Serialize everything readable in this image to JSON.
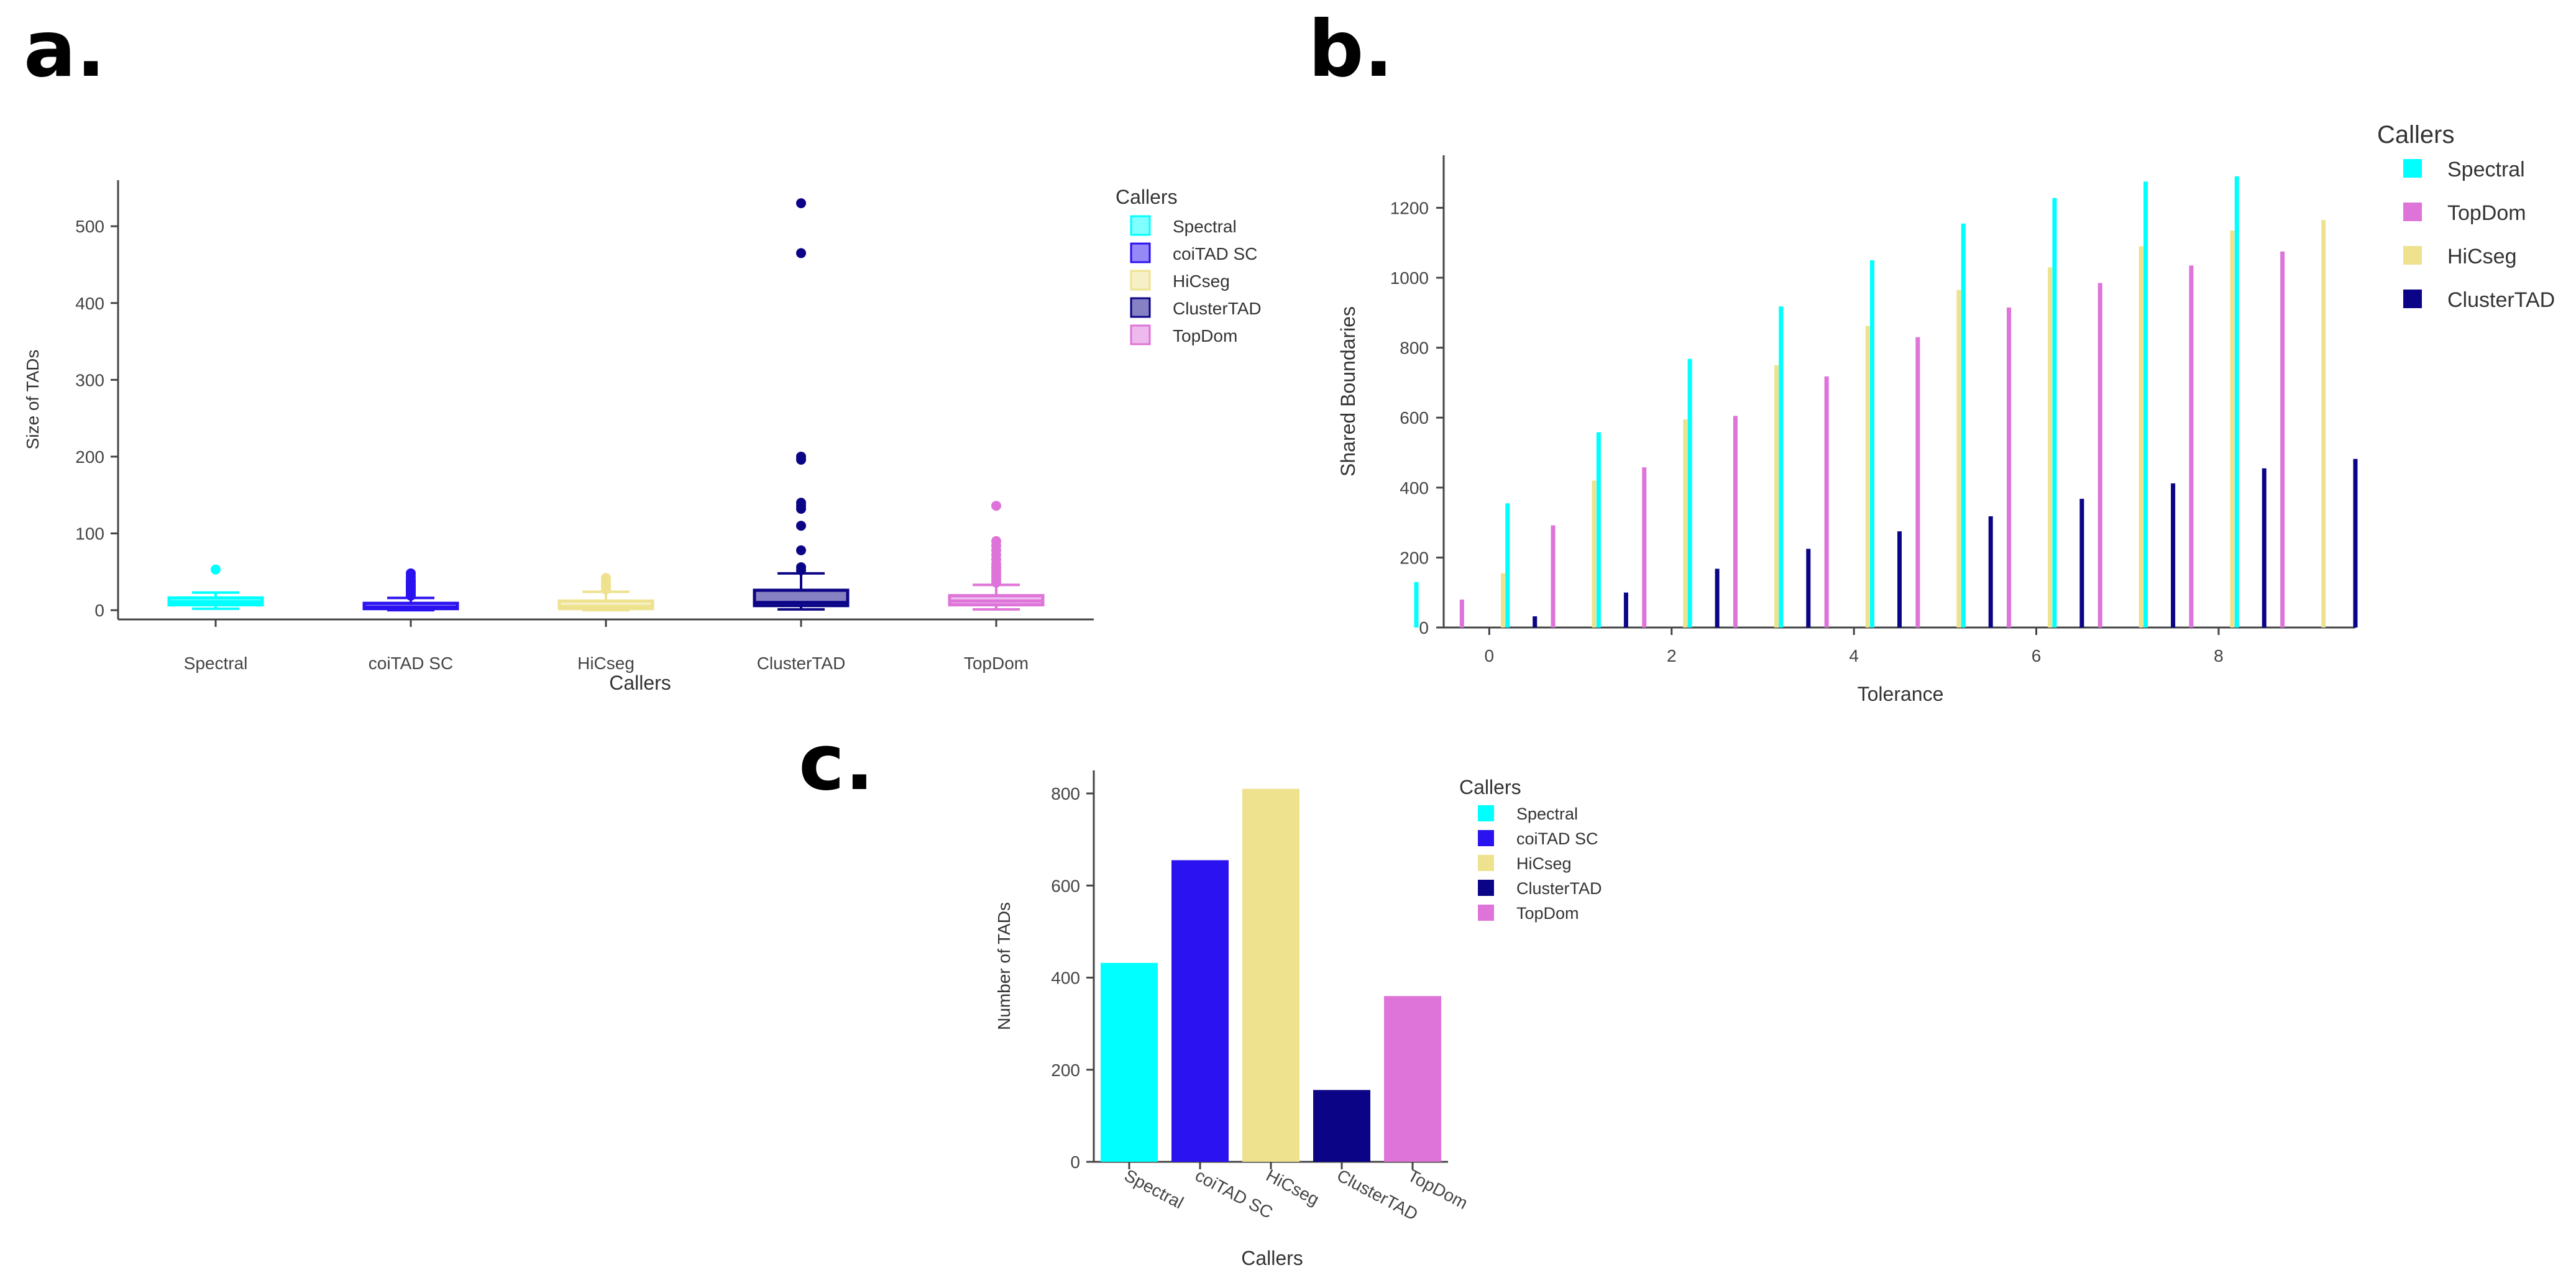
{
  "panels": {
    "a": {
      "label": "a."
    },
    "b": {
      "label": "b."
    },
    "c": {
      "label": "c."
    }
  },
  "colors": {
    "Spectral": "#00ffff",
    "coiTAD SC": "#2b12f0",
    "HiCseg": "#eee28f",
    "ClusterTAD": "#0c0486",
    "TopDom": "#de74d9"
  },
  "chart_data": [
    {
      "id": "a",
      "type": "box",
      "title": "",
      "xlabel": "Callers",
      "ylabel": "Size of TADs",
      "ylim": [
        -12,
        560
      ],
      "yticks": [
        0,
        100,
        200,
        300,
        400,
        500
      ],
      "legend_title": "Callers",
      "legend": [
        "Spectral",
        "coiTAD SC",
        "HiCseg",
        "ClusterTAD",
        "TopDom"
      ],
      "categories": [
        "Spectral",
        "coiTAD SC",
        "HiCseg",
        "ClusterTAD",
        "TopDom"
      ],
      "boxes": [
        {
          "name": "Spectral",
          "q1": 7,
          "median": 11,
          "q3": 16,
          "whisker_low": 2,
          "whisker_high": 23,
          "outliers": [
            53
          ]
        },
        {
          "name": "coiTAD SC",
          "q1": 2,
          "median": 4,
          "q3": 9,
          "whisker_low": 0,
          "whisker_high": 16,
          "outliers": [
            19,
            21,
            23,
            25,
            27,
            29,
            31,
            33,
            35,
            37,
            40,
            44,
            48
          ]
        },
        {
          "name": "HiCseg",
          "q1": 2,
          "median": 5,
          "q3": 12,
          "whisker_low": 0,
          "whisker_high": 24,
          "outliers": [
            27,
            30,
            33,
            36,
            39,
            42
          ]
        },
        {
          "name": "ClusterTAD",
          "q1": 6,
          "median": 10,
          "q3": 26,
          "whisker_low": 1,
          "whisker_high": 48,
          "outliers": [
            52,
            56,
            78,
            110,
            132,
            136,
            140,
            196,
            200,
            465,
            530
          ]
        },
        {
          "name": "TopDom",
          "q1": 7,
          "median": 12,
          "q3": 19,
          "whisker_low": 1,
          "whisker_high": 33,
          "outliers": [
            36,
            40,
            44,
            48,
            52,
            56,
            60,
            66,
            72,
            78,
            84,
            90,
            136
          ]
        }
      ]
    },
    {
      "id": "b",
      "type": "bar",
      "title": "",
      "xlabel": "Tolerance",
      "ylabel": "Shared Boundaries",
      "xlim": [
        -0.5,
        9.5
      ],
      "ylim": [
        0,
        1350
      ],
      "xticks": [
        0,
        2,
        4,
        6,
        8
      ],
      "yticks": [
        0,
        200,
        400,
        600,
        800,
        1000,
        1200
      ],
      "legend_title": "Callers",
      "legend": [
        "Spectral",
        "TopDom",
        "HiCseg",
        "ClusterTAD"
      ],
      "x": [
        0,
        1,
        2,
        3,
        4,
        5,
        6,
        7,
        8,
        9
      ],
      "series": [
        {
          "name": "Spectral",
          "values": [
            130,
            355,
            558,
            768,
            918,
            1050,
            1155,
            1228,
            1275,
            1290
          ]
        },
        {
          "name": "TopDom",
          "values": [
            80,
            292,
            458,
            605,
            718,
            830,
            915,
            985,
            1035,
            1075
          ]
        },
        {
          "name": "HiCseg",
          "values": [
            155,
            420,
            595,
            750,
            862,
            965,
            1030,
            1090,
            1135,
            1165
          ]
        },
        {
          "name": "ClusterTAD",
          "values": [
            32,
            100,
            168,
            225,
            275,
            318,
            368,
            412,
            455,
            482
          ]
        }
      ]
    },
    {
      "id": "c",
      "type": "bar",
      "title": "",
      "xlabel": "Callers",
      "ylabel": "Number of TADs",
      "ylim": [
        0,
        850
      ],
      "yticks": [
        0,
        200,
        400,
        600,
        800
      ],
      "legend_title": "Callers",
      "legend": [
        "Spectral",
        "coiTAD SC",
        "HiCseg",
        "ClusterTAD",
        "TopDom"
      ],
      "categories": [
        "Spectral",
        "coiTAD SC",
        "HiCseg",
        "ClusterTAD",
        "TopDom"
      ],
      "values": [
        432,
        655,
        810,
        156,
        360
      ]
    }
  ]
}
